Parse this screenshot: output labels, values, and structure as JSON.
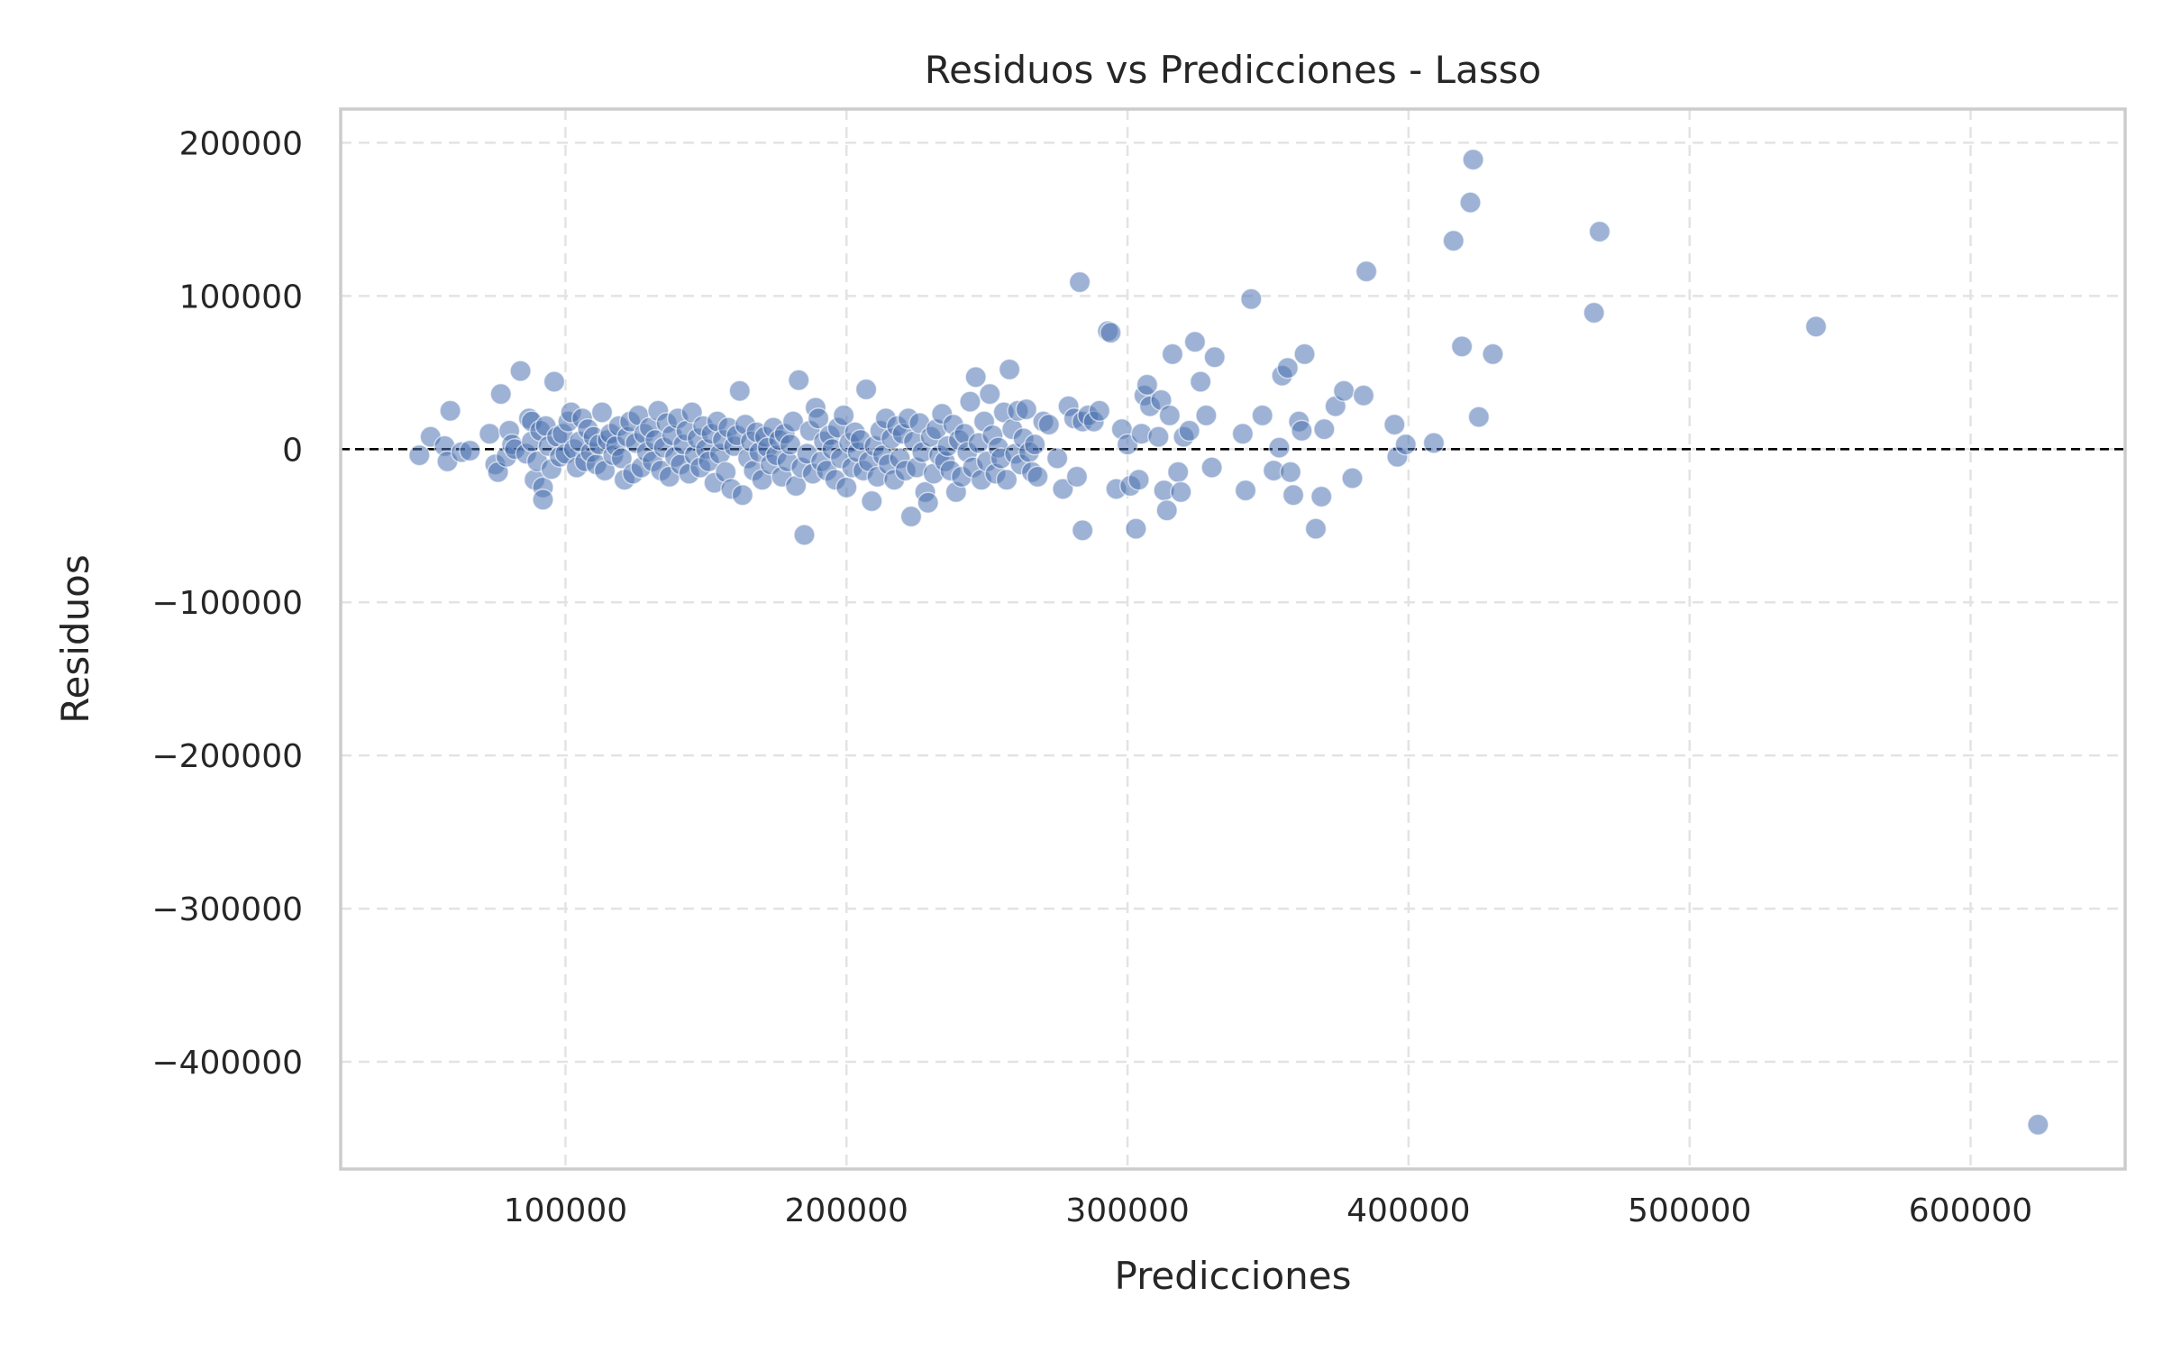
{
  "chart_data": {
    "type": "scatter",
    "title": "Residuos vs Predicciones - Lasso",
    "xlabel": "Predicciones",
    "ylabel": "Residuos",
    "xlim": [
      20000,
      655000
    ],
    "ylim": [
      -470000,
      222000
    ],
    "xticks": [
      100000,
      200000,
      300000,
      400000,
      500000,
      600000
    ],
    "xtick_labels": [
      "100000",
      "200000",
      "300000",
      "400000",
      "500000",
      "600000"
    ],
    "yticks": [
      200000,
      100000,
      0,
      -100000,
      -200000,
      -300000,
      -400000
    ],
    "ytick_labels": [
      "200000",
      "100000",
      "0",
      "−100000",
      "−200000",
      "−300000",
      "−400000"
    ],
    "grid": true,
    "reference_line": {
      "y": 0,
      "style": "dashed",
      "color": "#000000"
    },
    "point_color": "#4c72b0",
    "series": [
      {
        "points": [
          [
            48000,
            -4000
          ],
          [
            52000,
            8000
          ],
          [
            57000,
            2000
          ],
          [
            58000,
            -8000
          ],
          [
            59000,
            25000
          ],
          [
            63000,
            -2000
          ],
          [
            66000,
            -1000
          ],
          [
            73000,
            10000
          ],
          [
            75000,
            -10000
          ],
          [
            76000,
            -15000
          ],
          [
            77000,
            36000
          ],
          [
            79000,
            -5000
          ],
          [
            80000,
            12000
          ],
          [
            81000,
            3000
          ],
          [
            82000,
            0
          ],
          [
            84000,
            51000
          ],
          [
            86000,
            -3000
          ],
          [
            87000,
            20000
          ],
          [
            88000,
            18000
          ],
          [
            88000,
            5000
          ],
          [
            89000,
            -20000
          ],
          [
            90000,
            -8000
          ],
          [
            91000,
            12000
          ],
          [
            92000,
            -25000
          ],
          [
            92000,
            -33000
          ],
          [
            93000,
            15000
          ],
          [
            94000,
            2000
          ],
          [
            95000,
            -13000
          ],
          [
            96000,
            44000
          ],
          [
            97000,
            8000
          ],
          [
            98000,
            -5000
          ],
          [
            99000,
            10000
          ],
          [
            100000,
            -3000
          ],
          [
            101000,
            18000
          ],
          [
            102000,
            24000
          ],
          [
            103000,
            0
          ],
          [
            104000,
            -12000
          ],
          [
            105000,
            5000
          ],
          [
            106000,
            20000
          ],
          [
            107000,
            -8000
          ],
          [
            108000,
            13000
          ],
          [
            109000,
            -2000
          ],
          [
            110000,
            8000
          ],
          [
            111000,
            -10000
          ],
          [
            112000,
            3000
          ],
          [
            113000,
            24000
          ],
          [
            114000,
            -14000
          ],
          [
            115000,
            6000
          ],
          [
            116000,
            10000
          ],
          [
            117000,
            -4000
          ],
          [
            118000,
            2000
          ],
          [
            119000,
            15000
          ],
          [
            120000,
            -6000
          ],
          [
            121000,
            -20000
          ],
          [
            122000,
            8000
          ],
          [
            123000,
            18000
          ],
          [
            124000,
            -16000
          ],
          [
            125000,
            4000
          ],
          [
            126000,
            22000
          ],
          [
            127000,
            -12000
          ],
          [
            128000,
            10000
          ],
          [
            129000,
            -2000
          ],
          [
            130000,
            14000
          ],
          [
            131000,
            -8000
          ],
          [
            132000,
            6000
          ],
          [
            133000,
            25000
          ],
          [
            134000,
            -14000
          ],
          [
            135000,
            1000
          ],
          [
            136000,
            17000
          ],
          [
            137000,
            -18000
          ],
          [
            138000,
            9000
          ],
          [
            139000,
            -5000
          ],
          [
            140000,
            20000
          ],
          [
            141000,
            -10000
          ],
          [
            142000,
            3000
          ],
          [
            143000,
            12000
          ],
          [
            144000,
            -16000
          ],
          [
            145000,
            24000
          ],
          [
            146000,
            -4000
          ],
          [
            147000,
            7000
          ],
          [
            148000,
            -12000
          ],
          [
            149000,
            15000
          ],
          [
            150000,
            0
          ],
          [
            151000,
            -8000
          ],
          [
            152000,
            10000
          ],
          [
            153000,
            -22000
          ],
          [
            154000,
            18000
          ],
          [
            155000,
            -3000
          ],
          [
            156000,
            6000
          ],
          [
            157000,
            -15000
          ],
          [
            158000,
            14000
          ],
          [
            159000,
            -26000
          ],
          [
            160000,
            2000
          ],
          [
            161000,
            9000
          ],
          [
            162000,
            38000
          ],
          [
            163000,
            -30000
          ],
          [
            164000,
            16000
          ],
          [
            165000,
            -6000
          ],
          [
            166000,
            5000
          ],
          [
            167000,
            -14000
          ],
          [
            168000,
            11000
          ],
          [
            169000,
            -2000
          ],
          [
            170000,
            -20000
          ],
          [
            171000,
            8000
          ],
          [
            172000,
            1000
          ],
          [
            173000,
            -10000
          ],
          [
            174000,
            14000
          ],
          [
            175000,
            -4000
          ],
          [
            176000,
            6000
          ],
          [
            177000,
            -18000
          ],
          [
            178000,
            10000
          ],
          [
            179000,
            -8000
          ],
          [
            180000,
            3000
          ],
          [
            181000,
            18000
          ],
          [
            182000,
            -24000
          ],
          [
            183000,
            45000
          ],
          [
            184000,
            -12000
          ],
          [
            185000,
            -56000
          ],
          [
            186000,
            -3000
          ],
          [
            187000,
            12000
          ],
          [
            188000,
            -16000
          ],
          [
            189000,
            27000
          ],
          [
            190000,
            20000
          ],
          [
            191000,
            -8000
          ],
          [
            192000,
            5000
          ],
          [
            193000,
            -14000
          ],
          [
            194000,
            9000
          ],
          [
            195000,
            0
          ],
          [
            196000,
            -20000
          ],
          [
            197000,
            14000
          ],
          [
            198000,
            -6000
          ],
          [
            199000,
            22000
          ],
          [
            200000,
            -25000
          ],
          [
            201000,
            4000
          ],
          [
            202000,
            -12000
          ],
          [
            203000,
            11000
          ],
          [
            204000,
            -2000
          ],
          [
            205000,
            6000
          ],
          [
            206000,
            -14000
          ],
          [
            207000,
            39000
          ],
          [
            208000,
            -8000
          ],
          [
            209000,
            -34000
          ],
          [
            210000,
            2000
          ],
          [
            211000,
            -18000
          ],
          [
            212000,
            12000
          ],
          [
            213000,
            -4000
          ],
          [
            214000,
            20000
          ],
          [
            215000,
            -10000
          ],
          [
            216000,
            7000
          ],
          [
            217000,
            -20000
          ],
          [
            218000,
            15000
          ],
          [
            219000,
            -6000
          ],
          [
            220000,
            10000
          ],
          [
            221000,
            -14000
          ],
          [
            222000,
            20000
          ],
          [
            223000,
            -44000
          ],
          [
            224000,
            5000
          ],
          [
            225000,
            -12000
          ],
          [
            226000,
            17000
          ],
          [
            227000,
            -2000
          ],
          [
            228000,
            -28000
          ],
          [
            229000,
            -35000
          ],
          [
            230000,
            8000
          ],
          [
            231000,
            -16000
          ],
          [
            232000,
            13000
          ],
          [
            233000,
            -4000
          ],
          [
            234000,
            23000
          ],
          [
            235000,
            -8000
          ],
          [
            236000,
            2000
          ],
          [
            237000,
            -14000
          ],
          [
            238000,
            16000
          ],
          [
            239000,
            -28000
          ],
          [
            240000,
            6000
          ],
          [
            241000,
            -18000
          ],
          [
            242000,
            10000
          ],
          [
            243000,
            -2000
          ],
          [
            244000,
            31000
          ],
          [
            245000,
            -12000
          ],
          [
            246000,
            47000
          ],
          [
            247000,
            4000
          ],
          [
            248000,
            -20000
          ],
          [
            249000,
            18000
          ],
          [
            250000,
            -8000
          ],
          [
            251000,
            36000
          ],
          [
            252000,
            9000
          ],
          [
            253000,
            -16000
          ],
          [
            254000,
            1000
          ],
          [
            255000,
            -6000
          ],
          [
            256000,
            24000
          ],
          [
            257000,
            -20000
          ],
          [
            258000,
            52000
          ],
          [
            259000,
            13000
          ],
          [
            260000,
            -3000
          ],
          [
            261000,
            25000
          ],
          [
            262000,
            -10000
          ],
          [
            263000,
            7000
          ],
          [
            264000,
            26000
          ],
          [
            265000,
            -2000
          ],
          [
            266000,
            -15000
          ],
          [
            267000,
            3000
          ],
          [
            268000,
            -18000
          ],
          [
            270000,
            18000
          ],
          [
            272000,
            16000
          ],
          [
            275000,
            -6000
          ],
          [
            277000,
            -26000
          ],
          [
            279000,
            28000
          ],
          [
            281000,
            20000
          ],
          [
            282000,
            -18000
          ],
          [
            283000,
            109000
          ],
          [
            284000,
            18000
          ],
          [
            284000,
            -53000
          ],
          [
            286000,
            22000
          ],
          [
            288000,
            18000
          ],
          [
            290000,
            25000
          ],
          [
            293000,
            77000
          ],
          [
            294000,
            76000
          ],
          [
            296000,
            -26000
          ],
          [
            298000,
            13000
          ],
          [
            300000,
            3000
          ],
          [
            301000,
            -24000
          ],
          [
            303000,
            -52000
          ],
          [
            304000,
            -20000
          ],
          [
            305000,
            10000
          ],
          [
            306000,
            35000
          ],
          [
            307000,
            42000
          ],
          [
            308000,
            28000
          ],
          [
            311000,
            8000
          ],
          [
            312000,
            32000
          ],
          [
            313000,
            -27000
          ],
          [
            314000,
            -40000
          ],
          [
            315000,
            22000
          ],
          [
            316000,
            62000
          ],
          [
            318000,
            -15000
          ],
          [
            319000,
            -28000
          ],
          [
            320000,
            8000
          ],
          [
            322000,
            12000
          ],
          [
            324000,
            70000
          ],
          [
            326000,
            44000
          ],
          [
            328000,
            22000
          ],
          [
            330000,
            -12000
          ],
          [
            331000,
            60000
          ],
          [
            341000,
            10000
          ],
          [
            342000,
            -27000
          ],
          [
            344000,
            98000
          ],
          [
            348000,
            22000
          ],
          [
            352000,
            -14000
          ],
          [
            354000,
            1000
          ],
          [
            355000,
            48000
          ],
          [
            357000,
            53000
          ],
          [
            358000,
            -15000
          ],
          [
            359000,
            -30000
          ],
          [
            361000,
            18000
          ],
          [
            362000,
            12000
          ],
          [
            363000,
            62000
          ],
          [
            367000,
            -52000
          ],
          [
            369000,
            -31000
          ],
          [
            370000,
            13000
          ],
          [
            374000,
            28000
          ],
          [
            377000,
            38000
          ],
          [
            380000,
            -19000
          ],
          [
            384000,
            35000
          ],
          [
            385000,
            116000
          ],
          [
            395000,
            16000
          ],
          [
            396000,
            -5000
          ],
          [
            399000,
            3000
          ],
          [
            409000,
            4000
          ],
          [
            416000,
            136000
          ],
          [
            419000,
            67000
          ],
          [
            422000,
            161000
          ],
          [
            423000,
            189000
          ],
          [
            425000,
            21000
          ],
          [
            430000,
            62000
          ],
          [
            466000,
            89000
          ],
          [
            468000,
            142000
          ],
          [
            545000,
            80000
          ],
          [
            624000,
            -441000
          ]
        ]
      }
    ]
  }
}
